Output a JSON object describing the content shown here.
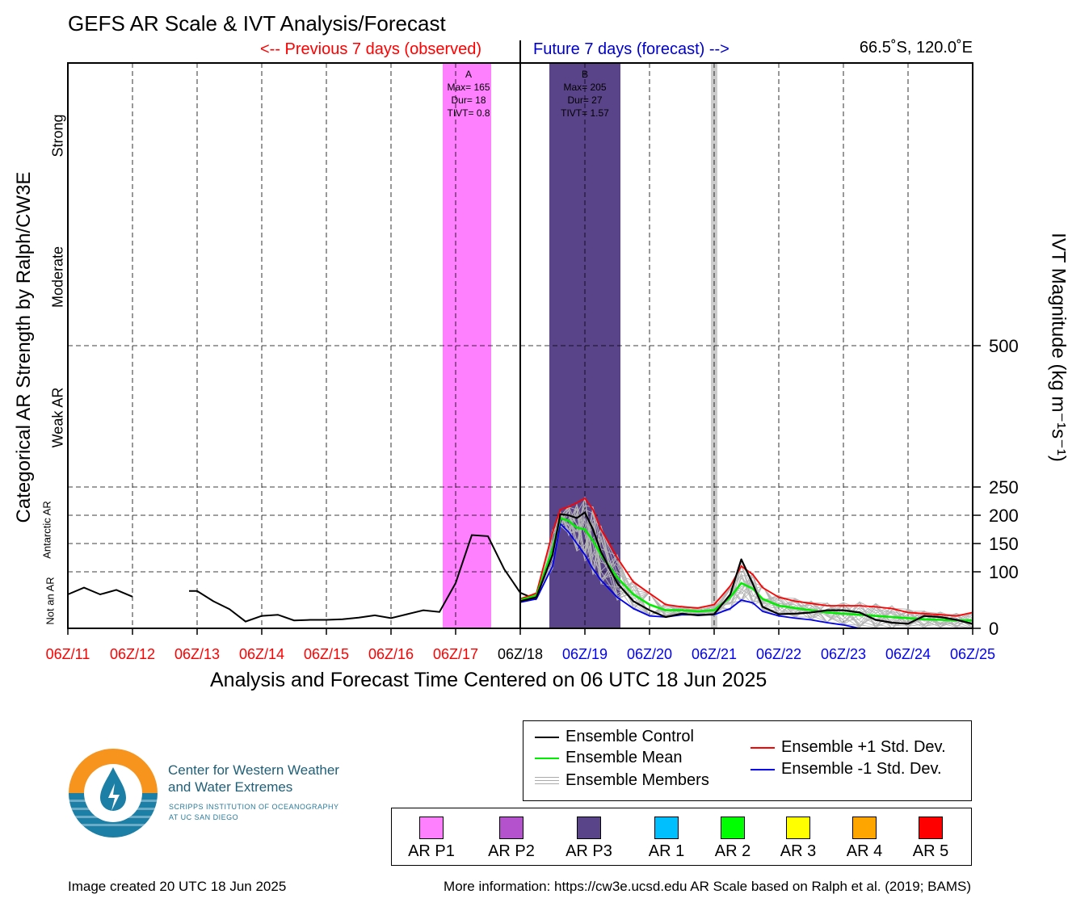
{
  "title": "GEFS AR Scale & IVT Analysis/Forecast",
  "prev_label": "<-- Previous 7 days (observed)",
  "future_label": "Future 7 days (forecast) -->",
  "location": "66.5˚S, 120.0˚E",
  "xlabel": "Analysis and Forecast Time Centered on 06 UTC 18 Jun 2025",
  "left_axis_title": "Categorical AR Strength by Ralph/CW3E",
  "right_axis_title": "IVT Magnitude (kg m⁻¹s⁻¹)",
  "categories": {
    "strong": "Strong",
    "moderate": "Moderate",
    "weak": "Weak AR",
    "antarctic": "Antarctic AR",
    "not_ar": "Not an AR"
  },
  "chart_data": {
    "type": "line",
    "xlim": [
      -7,
      7
    ],
    "ylim": [
      0,
      1000
    ],
    "x_units": "days relative to 06Z/18",
    "x_ticks": [
      {
        "x": -7,
        "label": "06Z/11",
        "color": "#ff0000"
      },
      {
        "x": -6,
        "label": "06Z/12",
        "color": "#ff0000"
      },
      {
        "x": -5,
        "label": "06Z/13",
        "color": "#ff0000"
      },
      {
        "x": -4,
        "label": "06Z/14",
        "color": "#ff0000"
      },
      {
        "x": -3,
        "label": "06Z/15",
        "color": "#ff0000"
      },
      {
        "x": -2,
        "label": "06Z/16",
        "color": "#ff0000"
      },
      {
        "x": -1,
        "label": "06Z/17",
        "color": "#ff0000"
      },
      {
        "x": 0,
        "label": "06Z/18",
        "color": "#000000"
      },
      {
        "x": 1,
        "label": "06Z/19",
        "color": "#0000ff"
      },
      {
        "x": 2,
        "label": "06Z/20",
        "color": "#0000ff"
      },
      {
        "x": 3,
        "label": "06Z/21",
        "color": "#0000ff"
      },
      {
        "x": 4,
        "label": "06Z/22",
        "color": "#0000ff"
      },
      {
        "x": 5,
        "label": "06Z/23",
        "color": "#0000ff"
      },
      {
        "x": 6,
        "label": "06Z/24",
        "color": "#0000ff"
      },
      {
        "x": 7,
        "label": "06Z/25",
        "color": "#0000ff"
      }
    ],
    "y_ticks": [
      0,
      100,
      150,
      200,
      250,
      500
    ],
    "grid": true,
    "ar_events": [
      {
        "label": "A",
        "max": "Max= 165",
        "dur": "Dur= 18",
        "tivt": "TIVT= 0.8",
        "x_start": -1.2,
        "x_end": -0.45,
        "x_text": -0.8,
        "color": "#ff80ff",
        "category": "AR P1"
      },
      {
        "label": "B",
        "max": "Max= 205",
        "dur": "Dur= 27",
        "tivt": "TIVT= 1.57",
        "x_start": 0.45,
        "x_end": 1.55,
        "x_text": 1.0,
        "color": "#5a4489",
        "category": "AR P3"
      }
    ],
    "gray_band": {
      "x_start": 2.95,
      "x_end": 3.05,
      "color": "#cccccc"
    },
    "observed": [
      [
        [
          -7,
          60
        ],
        [
          -6.75,
          72
        ],
        [
          -6.5,
          60
        ],
        [
          -6.25,
          68
        ],
        [
          -6,
          56
        ]
      ],
      [
        [
          -5.125,
          66
        ],
        [
          -5,
          66
        ],
        [
          -4.75,
          48
        ],
        [
          -4.5,
          34
        ],
        [
          -4.25,
          12
        ],
        [
          -4,
          22
        ],
        [
          -3.75,
          24
        ],
        [
          -3.5,
          14
        ],
        [
          -3.25,
          15
        ],
        [
          -3,
          15
        ],
        [
          -2.75,
          16
        ],
        [
          -2.5,
          19
        ],
        [
          -2.25,
          23
        ],
        [
          -2,
          18
        ],
        [
          -1.75,
          25
        ],
        [
          -1.5,
          32
        ],
        [
          -1.25,
          29
        ],
        [
          -1,
          80
        ],
        [
          -0.75,
          165
        ],
        [
          -0.5,
          163
        ],
        [
          -0.25,
          105
        ],
        [
          0,
          63
        ],
        [
          0.25,
          51
        ]
      ]
    ],
    "series": [
      {
        "key": "control",
        "color": "#000000",
        "width": 2.2,
        "points": [
          [
            0,
            48
          ],
          [
            0.25,
            55
          ],
          [
            0.5,
            130
          ],
          [
            0.62,
            202
          ],
          [
            0.75,
            200
          ],
          [
            0.875,
            195
          ],
          [
            1,
            205
          ],
          [
            1.125,
            175
          ],
          [
            1.25,
            135
          ],
          [
            1.5,
            80
          ],
          [
            1.75,
            48
          ],
          [
            2,
            32
          ],
          [
            2.25,
            20
          ],
          [
            2.5,
            26
          ],
          [
            2.75,
            23
          ],
          [
            3,
            25
          ],
          [
            3.25,
            60
          ],
          [
            3.42,
            122
          ],
          [
            3.6,
            78
          ],
          [
            3.75,
            38
          ],
          [
            4,
            25
          ],
          [
            4.25,
            26
          ],
          [
            4.5,
            28
          ],
          [
            4.75,
            32
          ],
          [
            5,
            32
          ],
          [
            5.25,
            28
          ],
          [
            5.5,
            15
          ],
          [
            5.75,
            10
          ],
          [
            6,
            8
          ],
          [
            6.25,
            22
          ],
          [
            6.5,
            20
          ],
          [
            6.75,
            15
          ],
          [
            7,
            8
          ]
        ]
      },
      {
        "key": "mean",
        "color": "#00ee00",
        "width": 2.6,
        "points": [
          [
            0,
            50
          ],
          [
            0.25,
            58
          ],
          [
            0.5,
            140
          ],
          [
            0.62,
            195
          ],
          [
            0.75,
            190
          ],
          [
            0.875,
            178
          ],
          [
            1,
            175
          ],
          [
            1.125,
            155
          ],
          [
            1.25,
            130
          ],
          [
            1.5,
            90
          ],
          [
            1.75,
            60
          ],
          [
            2,
            42
          ],
          [
            2.25,
            32
          ],
          [
            2.5,
            32
          ],
          [
            2.75,
            30
          ],
          [
            3,
            32
          ],
          [
            3.25,
            55
          ],
          [
            3.42,
            80
          ],
          [
            3.6,
            70
          ],
          [
            3.75,
            52
          ],
          [
            4,
            40
          ],
          [
            4.25,
            36
          ],
          [
            4.5,
            32
          ],
          [
            4.75,
            28
          ],
          [
            5,
            26
          ],
          [
            5.25,
            24
          ],
          [
            5.5,
            22
          ],
          [
            5.75,
            20
          ],
          [
            6,
            18
          ],
          [
            6.25,
            16
          ],
          [
            6.5,
            15
          ],
          [
            6.75,
            14
          ],
          [
            7,
            14
          ]
        ]
      },
      {
        "key": "plus1",
        "color": "#ff0000",
        "width": 1.8,
        "points": [
          [
            0,
            52
          ],
          [
            0.25,
            62
          ],
          [
            0.5,
            170
          ],
          [
            0.62,
            210
          ],
          [
            0.75,
            215
          ],
          [
            0.875,
            222
          ],
          [
            1,
            230
          ],
          [
            1.125,
            210
          ],
          [
            1.25,
            175
          ],
          [
            1.5,
            125
          ],
          [
            1.75,
            82
          ],
          [
            2,
            62
          ],
          [
            2.25,
            42
          ],
          [
            2.5,
            38
          ],
          [
            2.75,
            36
          ],
          [
            3,
            42
          ],
          [
            3.25,
            75
          ],
          [
            3.42,
            110
          ],
          [
            3.6,
            95
          ],
          [
            3.75,
            72
          ],
          [
            4,
            55
          ],
          [
            4.25,
            48
          ],
          [
            4.5,
            44
          ],
          [
            4.75,
            40
          ],
          [
            5,
            40
          ],
          [
            5.25,
            40
          ],
          [
            5.5,
            38
          ],
          [
            5.75,
            35
          ],
          [
            6,
            28
          ],
          [
            6.25,
            26
          ],
          [
            6.5,
            24
          ],
          [
            6.75,
            22
          ],
          [
            7,
            28
          ]
        ]
      },
      {
        "key": "minus1",
        "color": "#0000ee",
        "width": 1.8,
        "points": [
          [
            0,
            46
          ],
          [
            0.25,
            52
          ],
          [
            0.5,
            110
          ],
          [
            0.62,
            185
          ],
          [
            0.75,
            170
          ],
          [
            0.875,
            150
          ],
          [
            1,
            130
          ],
          [
            1.125,
            105
          ],
          [
            1.25,
            85
          ],
          [
            1.5,
            55
          ],
          [
            1.75,
            35
          ],
          [
            2,
            22
          ],
          [
            2.25,
            20
          ],
          [
            2.5,
            24
          ],
          [
            2.75,
            24
          ],
          [
            3,
            24
          ],
          [
            3.25,
            35
          ],
          [
            3.42,
            50
          ],
          [
            3.6,
            45
          ],
          [
            3.75,
            30
          ],
          [
            4,
            22
          ],
          [
            4.25,
            18
          ],
          [
            4.5,
            15
          ],
          [
            4.75,
            10
          ],
          [
            5,
            6
          ],
          [
            5.25,
            0
          ],
          [
            5.5,
            0
          ],
          [
            5.75,
            0
          ],
          [
            6,
            0
          ],
          [
            6.25,
            0
          ],
          [
            6.5,
            0
          ],
          [
            6.75,
            0
          ],
          [
            7,
            0
          ]
        ]
      }
    ],
    "members_color": "#b5b5b5"
  },
  "legend": {
    "control": "Ensemble Control",
    "mean": "Ensemble Mean",
    "members": "Ensemble Members",
    "plus1": "Ensemble +1 Std. Dev.",
    "minus1": "Ensemble -1 Std. Dev."
  },
  "ar_categories": [
    {
      "label": "AR P1",
      "color": "#ff80ff"
    },
    {
      "label": "AR P2",
      "color": "#b452cd"
    },
    {
      "label": "AR P3",
      "color": "#5a4489"
    },
    {
      "label": "AR 1",
      "color": "#00bfff"
    },
    {
      "label": "AR 2",
      "color": "#00ff00"
    },
    {
      "label": "AR 3",
      "color": "#ffff00"
    },
    {
      "label": "AR 4",
      "color": "#ffa500"
    },
    {
      "label": "AR 5",
      "color": "#ff0000"
    }
  ],
  "logo": {
    "line1": "Center for Western Weather",
    "line2": "and Water Extremes",
    "sub1": "SCRIPPS INSTITUTION OF OCEANOGRAPHY",
    "sub2": "AT UC SAN DIEGO",
    "orange": "#f7941d",
    "blue": "#1c7fa6"
  },
  "footer_left": "Image created 20 UTC 18 Jun 2025",
  "footer_right": "More information: https://cw3e.ucsd.edu AR Scale based on Ralph et al. (2019; BAMS)"
}
